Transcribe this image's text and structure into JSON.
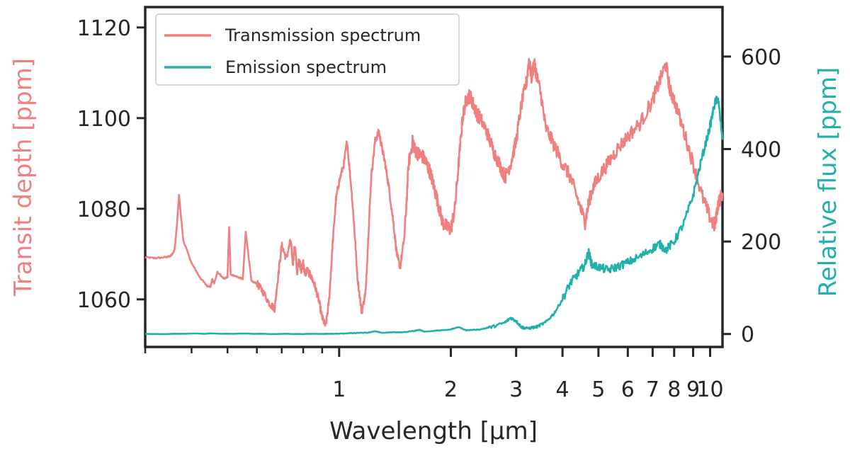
{
  "chart_data": {
    "type": "line",
    "xlabel": "Wavelength [μm]",
    "ylabel_left": "Transit depth [ppm]",
    "ylabel_right": "Relative flux [ppm]",
    "xscale": "log",
    "xlim": [
      0.3,
      10.8
    ],
    "ylim_left": [
      1049.5,
      1124.5
    ],
    "ylim_right": [
      -28,
      707
    ],
    "xticks": [
      {
        "value": 1,
        "label": "1"
      },
      {
        "value": 2,
        "label": "2"
      },
      {
        "value": 3,
        "label": "3"
      },
      {
        "value": 4,
        "label": "4"
      },
      {
        "value": 5,
        "label": "5"
      },
      {
        "value": 6,
        "label": "6"
      },
      {
        "value": 7,
        "label": "7"
      },
      {
        "value": 8,
        "label": "8"
      },
      {
        "value": 9,
        "label": "9"
      },
      {
        "value": 10,
        "label": "10"
      }
    ],
    "yticks_left": [
      {
        "value": 1060,
        "label": "1060"
      },
      {
        "value": 1080,
        "label": "1080"
      },
      {
        "value": 1100,
        "label": "1100"
      },
      {
        "value": 1120,
        "label": "1120"
      }
    ],
    "yticks_right": [
      {
        "value": 0,
        "label": "0"
      },
      {
        "value": 200,
        "label": "200"
      },
      {
        "value": 400,
        "label": "400"
      },
      {
        "value": 600,
        "label": "600"
      }
    ],
    "legend_position": "top-left",
    "colors": {
      "transmission": "#f08080",
      "emission": "#20b2aa",
      "axis": "#262626"
    },
    "series": [
      {
        "name": "Transmission spectrum",
        "axis": "left",
        "x": [
          0.3,
          0.32,
          0.34,
          0.35,
          0.355,
          0.36,
          0.365,
          0.37,
          0.38,
          0.4,
          0.42,
          0.44,
          0.45,
          0.455,
          0.46,
          0.47,
          0.49,
          0.5,
          0.505,
          0.51,
          0.53,
          0.55,
          0.56,
          0.58,
          0.6,
          0.62,
          0.65,
          0.67,
          0.68,
          0.7,
          0.72,
          0.74,
          0.75,
          0.76,
          0.77,
          0.78,
          0.79,
          0.8,
          0.81,
          0.82,
          0.84,
          0.86,
          0.88,
          0.9,
          0.92,
          0.94,
          0.96,
          0.98,
          1.0,
          1.03,
          1.05,
          1.08,
          1.1,
          1.12,
          1.15,
          1.18,
          1.2,
          1.22,
          1.25,
          1.28,
          1.3,
          1.33,
          1.36,
          1.4,
          1.43,
          1.46,
          1.5,
          1.54,
          1.58,
          1.6,
          1.64,
          1.68,
          1.72,
          1.76,
          1.8,
          1.85,
          1.9,
          1.95,
          2.0,
          2.05,
          2.1,
          2.15,
          2.2,
          2.25,
          2.3,
          2.35,
          2.4,
          2.5,
          2.6,
          2.7,
          2.8,
          2.9,
          3.0,
          3.1,
          3.2,
          3.25,
          3.3,
          3.35,
          3.4,
          3.5,
          3.6,
          3.8,
          4.0,
          4.2,
          4.4,
          4.6,
          4.7,
          4.8,
          5.0,
          5.3,
          5.6,
          6.0,
          6.5,
          7.0,
          7.3,
          7.6,
          7.8,
          8.0,
          8.5,
          9.0,
          9.5,
          10.0,
          10.3,
          10.5,
          10.8
        ],
        "y": [
          1069.3,
          1069.1,
          1069.3,
          1069.5,
          1070.0,
          1071.0,
          1076.0,
          1083.0,
          1073.0,
          1068.0,
          1065.0,
          1063.0,
          1062.8,
          1064.5,
          1063.5,
          1066.0,
          1064.5,
          1065.0,
          1076.0,
          1065.5,
          1065.0,
          1064.5,
          1075.0,
          1064.0,
          1063.5,
          1062.0,
          1059.0,
          1058.0,
          1063.0,
          1072.0,
          1069.0,
          1073.0,
          1068.0,
          1072.0,
          1066.0,
          1069.0,
          1066.5,
          1068.0,
          1065.5,
          1066.5,
          1065.0,
          1063.0,
          1060.0,
          1056.0,
          1054.0,
          1060.0,
          1072.0,
          1082.0,
          1086.0,
          1090.0,
          1095.0,
          1084.0,
          1075.0,
          1065.0,
          1057.0,
          1062.0,
          1075.0,
          1087.0,
          1095.0,
          1097.0,
          1094.0,
          1090.0,
          1085.0,
          1077.0,
          1070.0,
          1067.0,
          1074.0,
          1090.0,
          1095.0,
          1093.0,
          1092.0,
          1091.5,
          1090.0,
          1088.0,
          1085.0,
          1081.0,
          1077.0,
          1076.0,
          1075.5,
          1080.0,
          1090.0,
          1100.0,
          1104.0,
          1105.0,
          1103.0,
          1101.0,
          1100.0,
          1097.0,
          1093.0,
          1090.0,
          1087.0,
          1090.0,
          1095.0,
          1103.0,
          1108.0,
          1113.0,
          1109.0,
          1112.0,
          1110.0,
          1105.0,
          1098.0,
          1094.0,
          1090.0,
          1087.0,
          1082.0,
          1077.0,
          1081.0,
          1084.0,
          1087.0,
          1090.0,
          1093.0,
          1096.0,
          1099.0,
          1104.0,
          1108.0,
          1112.0,
          1106.0,
          1104.0,
          1097.0,
          1090.0,
          1083.0,
          1078.0,
          1076.0,
          1081.0,
          1083.5
        ]
      },
      {
        "name": "Emission spectrum",
        "axis": "right",
        "x": [
          0.3,
          0.5,
          0.8,
          1.0,
          1.1,
          1.2,
          1.25,
          1.3,
          1.5,
          1.6,
          1.65,
          1.7,
          2.0,
          2.1,
          2.2,
          2.4,
          2.6,
          2.8,
          2.9,
          3.0,
          3.1,
          3.2,
          3.4,
          3.6,
          3.8,
          4.0,
          4.2,
          4.4,
          4.6,
          4.7,
          4.8,
          5.0,
          5.3,
          5.6,
          6.0,
          6.5,
          7.0,
          7.3,
          7.6,
          8.0,
          8.5,
          9.0,
          9.5,
          10.0,
          10.3,
          10.5,
          10.8
        ],
        "y": [
          0,
          1,
          0,
          1,
          2,
          3,
          6,
          3,
          4,
          7,
          9,
          5,
          10,
          15,
          8,
          10,
          16,
          25,
          35,
          28,
          15,
          12,
          15,
          25,
          45,
          75,
          110,
          130,
          150,
          178,
          150,
          145,
          138,
          145,
          155,
          168,
          185,
          195,
          182,
          200,
          240,
          300,
          380,
          450,
          500,
          510,
          420
        ]
      }
    ]
  }
}
